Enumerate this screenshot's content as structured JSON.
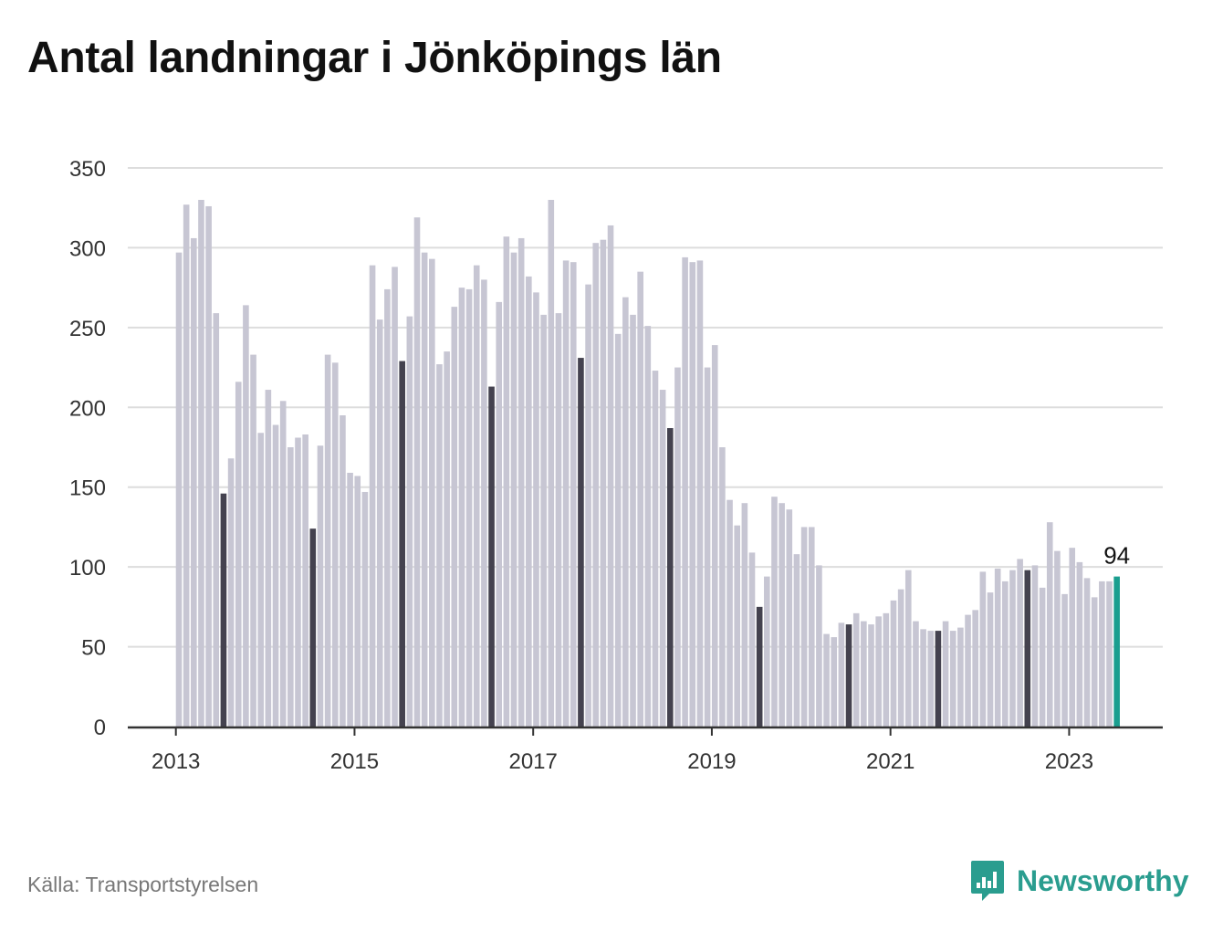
{
  "title": "Antal landningar i Jönköpings län",
  "source": "Källa: Transportstyrelsen",
  "brand": {
    "name": "Newsworthy",
    "icon": "newsworthy-logo-icon"
  },
  "colors": {
    "bar": "#c7c6d3",
    "highlight": "#44424f",
    "latest": "#1a9e8f",
    "grid": "#dddddd",
    "axis": "#333333"
  },
  "chart_data": {
    "type": "bar",
    "title": "Antal landningar i Jönköpings län",
    "xlabel": "",
    "ylabel": "",
    "ylim": [
      0,
      350
    ],
    "yticks": [
      "0",
      "50",
      "100",
      "150",
      "200",
      "250",
      "300",
      "350"
    ],
    "xticks": [
      "2013",
      "2015",
      "2017",
      "2019",
      "2021",
      "2023"
    ],
    "grid": true,
    "start": "2013-01",
    "highlight_month": "July",
    "latest_label": "94",
    "values": [
      297,
      327,
      306,
      330,
      326,
      259,
      146,
      168,
      216,
      264,
      233,
      184,
      211,
      189,
      204,
      175,
      181,
      183,
      124,
      176,
      233,
      228,
      195,
      159,
      157,
      147,
      289,
      255,
      274,
      288,
      229,
      257,
      319,
      297,
      293,
      227,
      235,
      263,
      275,
      274,
      289,
      280,
      213,
      266,
      307,
      297,
      306,
      282,
      272,
      258,
      330,
      259,
      292,
      291,
      231,
      277,
      303,
      305,
      314,
      246,
      269,
      258,
      285,
      251,
      223,
      211,
      187,
      225,
      294,
      291,
      292,
      225,
      239,
      175,
      142,
      126,
      140,
      109,
      75,
      94,
      144,
      140,
      136,
      108,
      125,
      125,
      101,
      58,
      56,
      65,
      64,
      71,
      66,
      64,
      69,
      71,
      79,
      86,
      98,
      66,
      61,
      60,
      60,
      66,
      60,
      62,
      70,
      73,
      97,
      84,
      99,
      91,
      98,
      105,
      98,
      101,
      87,
      128,
      110,
      83,
      112,
      103,
      93,
      81,
      91,
      91,
      94
    ]
  }
}
